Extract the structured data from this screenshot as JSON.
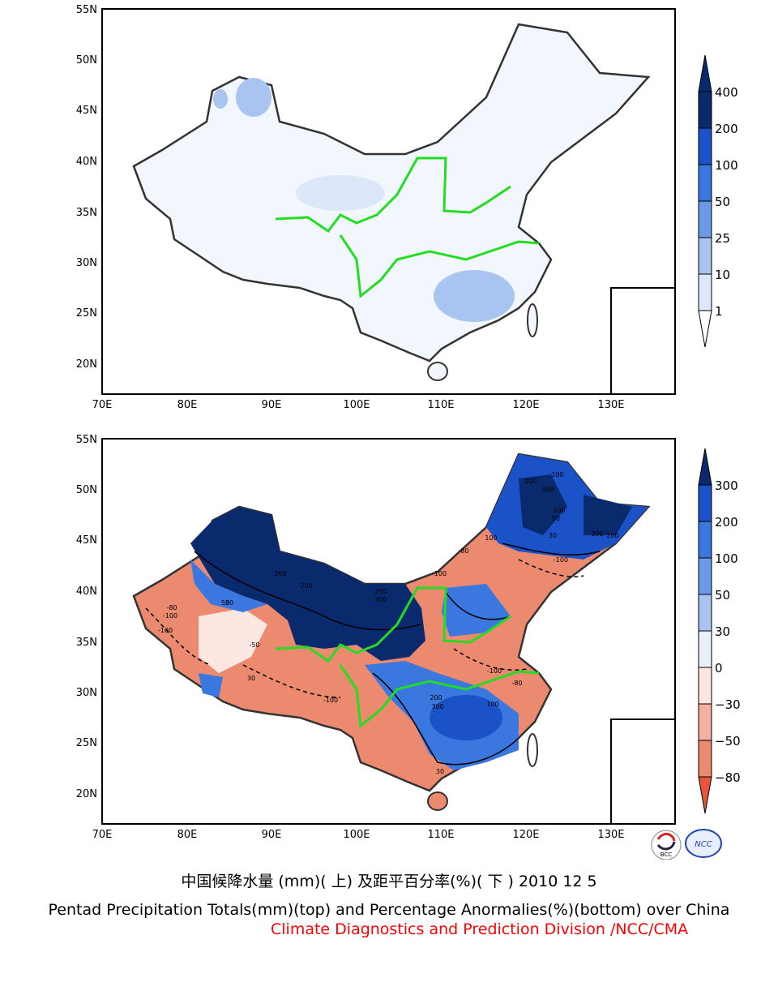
{
  "top_map": {
    "lat_labels": [
      "55N",
      "50N",
      "45N",
      "40N",
      "35N",
      "30N",
      "25N",
      "20N"
    ],
    "lon_labels": [
      "70E",
      "80E",
      "90E",
      "100E",
      "110E",
      "120E",
      "130E"
    ],
    "legend": {
      "labels": [
        "400",
        "200",
        "100",
        "50",
        "25",
        "10",
        "1"
      ],
      "colors": [
        "#0a2a6e",
        "#1c52c8",
        "#3a78e0",
        "#6b9ae8",
        "#a9c4f0",
        "#dce7fa",
        "#ffffff"
      ]
    }
  },
  "bottom_map": {
    "lat_labels": [
      "55N",
      "50N",
      "45N",
      "40N",
      "35N",
      "30N",
      "25N",
      "20N"
    ],
    "lon_labels": [
      "70E",
      "80E",
      "90E",
      "100E",
      "110E",
      "120E",
      "130E"
    ],
    "legend": {
      "labels": [
        "300",
        "200",
        "100",
        "50",
        "30",
        "0",
        "−30",
        "−50",
        "−80"
      ],
      "colors": [
        "#0a2a6e",
        "#1c52c8",
        "#3a78e0",
        "#6b9ae8",
        "#a9c4f0",
        "#eaf0fb",
        "#fce6e1",
        "#f4b0a0",
        "#ec8a70",
        "#e8553a"
      ]
    },
    "contour_labels": [
      "100",
      "200",
      "300",
      "50",
      "100",
      "30",
      "-100",
      "-80",
      "300",
      "200",
      "100",
      "50",
      "-80",
      "-100",
      "200",
      "300",
      "-50",
      "-100",
      "-100",
      "200",
      "300",
      "30",
      "50",
      "-100",
      "-100",
      "-80",
      "200",
      "300",
      "100",
      "30"
    ]
  },
  "logos": {
    "left": "BCC",
    "right": "NCC"
  },
  "captions": {
    "cn": "中国候降水量 (mm)( 上) 及距平百分率(%)( 下 ) 2010 12 5",
    "en": "Pentad Precipitation Totals(mm)(top) and Percentage Anormalies(%)(bottom) over China",
    "org": "Climate Diagnostics and Prediction Division /NCC/CMA"
  }
}
